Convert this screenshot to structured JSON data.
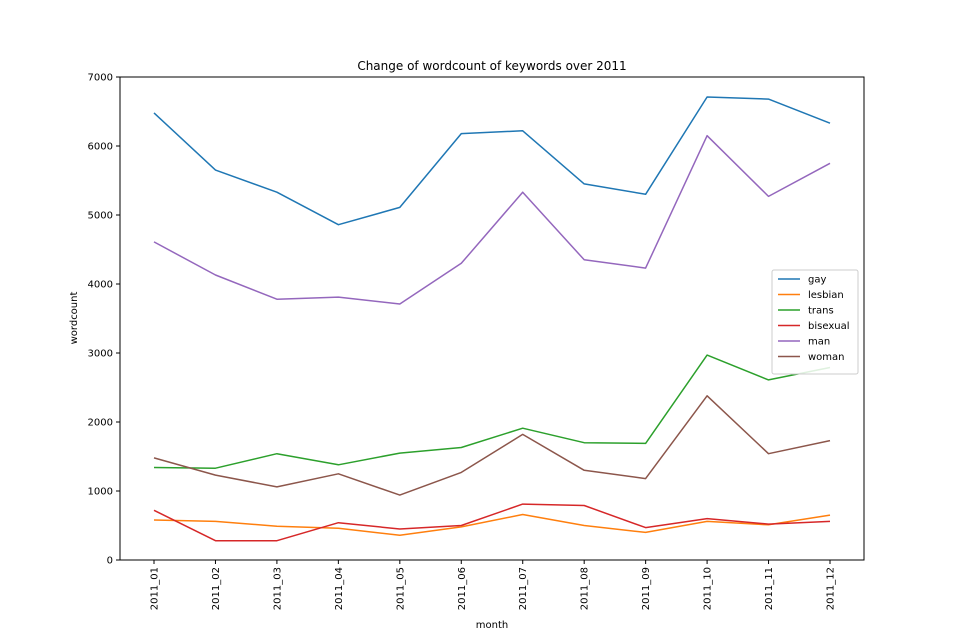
{
  "chart_data": {
    "type": "line",
    "title": "Change of wordcount of keywords over 2011",
    "xlabel": "month",
    "ylabel": "wordcount",
    "categories": [
      "2011_01",
      "2011_02",
      "2011_03",
      "2011_04",
      "2011_05",
      "2011_06",
      "2011_07",
      "2011_08",
      "2011_09",
      "2011_10",
      "2011_11",
      "2011_12"
    ],
    "ylim": [
      0,
      7000
    ],
    "yticks": [
      0,
      1000,
      2000,
      3000,
      4000,
      5000,
      6000,
      7000
    ],
    "legend_position": "center-right",
    "grid": false,
    "series": [
      {
        "name": "gay",
        "color": "#1f77b4",
        "values": [
          6480,
          5650,
          5330,
          4860,
          5110,
          6180,
          6220,
          5450,
          5300,
          6710,
          6680,
          6330
        ]
      },
      {
        "name": "lesbian",
        "color": "#ff7f0e",
        "values": [
          580,
          560,
          490,
          460,
          360,
          480,
          660,
          500,
          400,
          560,
          510,
          650
        ]
      },
      {
        "name": "trans",
        "color": "#2ca02c",
        "values": [
          1340,
          1330,
          1540,
          1380,
          1550,
          1630,
          1910,
          1700,
          1690,
          2970,
          2610,
          2790
        ]
      },
      {
        "name": "bisexual",
        "color": "#d62728",
        "values": [
          720,
          280,
          280,
          540,
          450,
          500,
          810,
          790,
          470,
          600,
          520,
          560
        ]
      },
      {
        "name": "man",
        "color": "#9467bd",
        "values": [
          4610,
          4130,
          3780,
          3810,
          3710,
          4300,
          5330,
          4350,
          4230,
          6150,
          5270,
          5750
        ]
      },
      {
        "name": "woman",
        "color": "#8c564b",
        "values": [
          1480,
          1230,
          1060,
          1250,
          940,
          1270,
          1820,
          1300,
          1180,
          2380,
          1540,
          1730
        ]
      }
    ]
  }
}
